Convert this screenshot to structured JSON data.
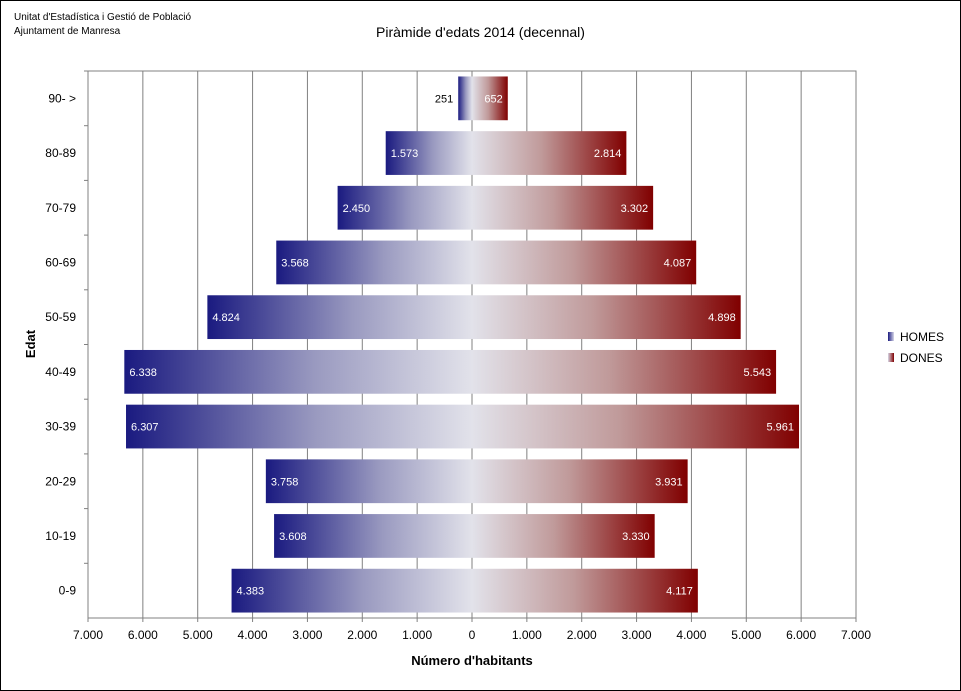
{
  "header": {
    "org_line1": "Unitat d'Estadística i Gestió de Població",
    "org_line2": "Ajuntament de Manresa"
  },
  "chart_data": {
    "type": "bar",
    "orientation": "horizontal",
    "title": "Piràmide d'edats 2014 (decennal)",
    "xlabel": "Número d'habitants",
    "ylabel": "Edat",
    "xlim": [
      -7000,
      7000
    ],
    "x_ticks": [
      -7000,
      -6000,
      -5000,
      -4000,
      -3000,
      -2000,
      -1000,
      0,
      1000,
      2000,
      3000,
      4000,
      5000,
      6000,
      7000
    ],
    "x_tick_labels": [
      "7.000",
      "6.000",
      "5.000",
      "4.000",
      "3.000",
      "2.000",
      "1.000",
      "0",
      "1.000",
      "2.000",
      "3.000",
      "4.000",
      "5.000",
      "6.000",
      "7.000"
    ],
    "categories": [
      "90- >",
      "80-89",
      "70-79",
      "60-69",
      "50-59",
      "40-49",
      "30-39",
      "20-29",
      "10-19",
      "0-9"
    ],
    "series": [
      {
        "name": "HOMES",
        "color": "#1a1a80",
        "values": [
          251,
          1573,
          2450,
          3568,
          4824,
          6338,
          6307,
          3758,
          3608,
          4383
        ],
        "labels": [
          "251",
          "1.573",
          "2.450",
          "3.568",
          "4.824",
          "6.338",
          "6.307",
          "3.758",
          "3.608",
          "4.383"
        ]
      },
      {
        "name": "DONES",
        "color": "#800000",
        "values": [
          652,
          2814,
          3302,
          4087,
          4898,
          5543,
          5961,
          3931,
          3330,
          4117
        ],
        "labels": [
          "652",
          "2.814",
          "3.302",
          "4.087",
          "4.898",
          "5.543",
          "5.961",
          "3.931",
          "3.330",
          "4.117"
        ]
      }
    ],
    "grid": true,
    "legend": "right"
  }
}
